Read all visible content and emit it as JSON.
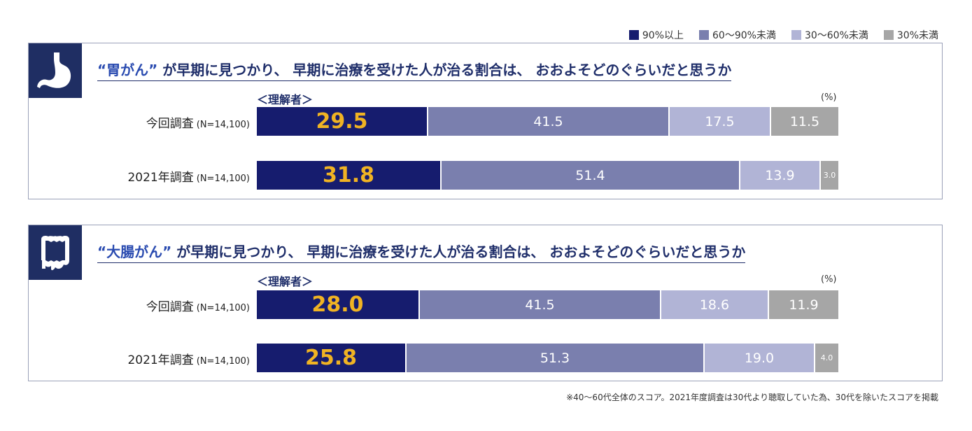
{
  "legend": [
    {
      "label": "90%以上",
      "color": "#161c6e"
    },
    {
      "label": "60〜90%未満",
      "color": "#7a7fae"
    },
    {
      "label": "30〜60%未満",
      "color": "#b1b4d6"
    },
    {
      "label": "30%未満",
      "color": "#a6a6a6"
    }
  ],
  "chart_data": [
    {
      "type": "bar",
      "stacked": true,
      "orientation": "horizontal",
      "title_quote": "“胃がん”",
      "title_rest": "が早期に見つかり、 早期に治療を受けた人が治る割合は、 おおよそどのぐらいだと思うか",
      "group_label": "＜理解者＞",
      "unit": "(%)",
      "icon": "stomach-icon",
      "rows": [
        {
          "label": "今回調査",
          "n": "(N=14,100)",
          "values": [
            29.5,
            41.5,
            17.5,
            11.5
          ],
          "labels": [
            "29.5",
            "41.5",
            "17.5",
            "11.5"
          ]
        },
        {
          "label": "2021年調査",
          "n": "(N=14,100)",
          "values": [
            31.8,
            51.4,
            13.9,
            3.0
          ],
          "labels": [
            "31.8",
            "51.4",
            "13.9",
            "3.0"
          ]
        }
      ]
    },
    {
      "type": "bar",
      "stacked": true,
      "orientation": "horizontal",
      "title_quote": "“大腸がん”",
      "title_rest": "が早期に見つかり、 早期に治療を受けた人が治る割合は、 おおよそどのぐらいだと思うか",
      "group_label": "＜理解者＞",
      "unit": "(%)",
      "icon": "colon-icon",
      "rows": [
        {
          "label": "今回調査",
          "n": "(N=14,100)",
          "values": [
            28.0,
            41.5,
            18.6,
            11.9
          ],
          "labels": [
            "28.0",
            "41.5",
            "18.6",
            "11.9"
          ]
        },
        {
          "label": "2021年調査",
          "n": "(N=14,100)",
          "values": [
            25.8,
            51.3,
            19.0,
            4.0
          ],
          "labels": [
            "25.8",
            "51.3",
            "19.0",
            "4.0"
          ]
        }
      ]
    }
  ],
  "footnote": "※40〜60代全体のスコア。2021年度調査は30代より聴取していた為、30代を除いたスコアを掲載"
}
